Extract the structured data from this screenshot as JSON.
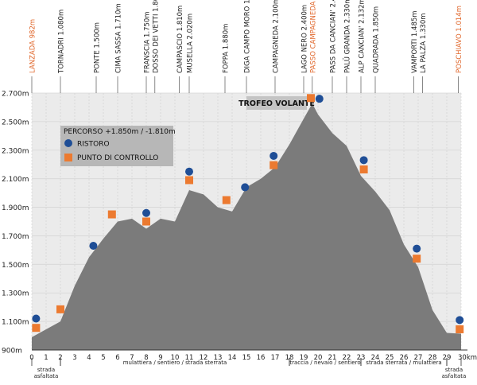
{
  "chart_data": {
    "type": "area",
    "title": "",
    "xlabel": "",
    "ylabel": "",
    "xlim": [
      0,
      30
    ],
    "ylim": [
      900,
      2700
    ],
    "y_ticks": [
      900,
      1100,
      1300,
      1500,
      1700,
      1900,
      2100,
      2300,
      2500,
      2700
    ],
    "y_tick_labels": [
      "900m",
      "1.100m",
      "1.300m",
      "1.500m",
      "1.700m",
      "1.900m",
      "2.100m",
      "2.300m",
      "2.500m",
      "2.700m"
    ],
    "x_ticks": [
      0,
      1,
      2,
      3,
      4,
      5,
      6,
      7,
      8,
      9,
      10,
      11,
      12,
      13,
      14,
      15,
      16,
      17,
      18,
      19,
      20,
      21,
      22,
      23,
      24,
      25,
      26,
      27,
      28,
      29,
      30
    ],
    "x_tick_labels": [
      "0",
      "1",
      "2",
      "3",
      "4",
      "5",
      "6",
      "7",
      "8",
      "9",
      "10",
      "11",
      "12",
      "13",
      "14",
      "15",
      "16",
      "17",
      "18",
      "19",
      "20",
      "21",
      "22",
      "23",
      "24",
      "25",
      "26",
      "27",
      "28",
      "29",
      "30km"
    ],
    "grid": true,
    "profile": {
      "x": [
        0,
        2,
        3,
        4,
        5,
        6,
        7,
        8,
        9,
        10,
        11,
        12,
        13,
        14,
        15,
        16,
        17,
        18,
        19,
        19.6,
        20,
        21,
        22,
        23,
        24,
        25,
        26,
        27,
        28,
        29,
        30
      ],
      "y": [
        990,
        1100,
        1350,
        1550,
        1680,
        1800,
        1820,
        1750,
        1820,
        1800,
        2020,
        1990,
        1900,
        1870,
        2040,
        2100,
        2180,
        2340,
        2520,
        2627,
        2550,
        2420,
        2330,
        2120,
        2010,
        1880,
        1640,
        1480,
        1180,
        1020,
        1014
      ]
    },
    "places": [
      {
        "label": "LANZADA 982m",
        "km": 0,
        "highlight": true
      },
      {
        "label": "TORNADRI 1.080m",
        "km": 2,
        "highlight": false
      },
      {
        "label": "PONTE 1.500m",
        "km": 4.5,
        "highlight": false
      },
      {
        "label": "CIMA SASSA 1.710m",
        "km": 6,
        "highlight": false
      },
      {
        "label": "FRANSCIA 1.750m",
        "km": 8,
        "highlight": false
      },
      {
        "label": "DOSSO DEI VETTI 1.800m",
        "km": 8.6,
        "highlight": false
      },
      {
        "label": "CAMPASCIO 1.810m",
        "km": 10.3,
        "highlight": false
      },
      {
        "label": "MUSELLA 2.020m",
        "km": 11,
        "highlight": false
      },
      {
        "label": "FOPPA 1.880m",
        "km": 13.5,
        "highlight": false
      },
      {
        "label": "DIGA CAMPO MORO 1.970m",
        "km": 15,
        "highlight": false
      },
      {
        "label": "CAMPAGNEDA 2.100m",
        "km": 17,
        "highlight": false
      },
      {
        "label": "LAGO NERO 2.400m",
        "km": 19,
        "highlight": false
      },
      {
        "label": "PASSO CAMPAGNEDA 2.627m",
        "km": 19.6,
        "highlight": true
      },
      {
        "label": "PASS DA CANCIAN' 2.498m",
        "km": 21,
        "highlight": false
      },
      {
        "label": "PALÜ GRANDA 2.330m",
        "km": 22,
        "highlight": false
      },
      {
        "label": "ALP CANCIAN' 2.132m",
        "km": 23,
        "highlight": false
      },
      {
        "label": "QUADRADA 1.850m",
        "km": 24,
        "highlight": false
      },
      {
        "label": "VAMPORTI 1.485m",
        "km": 26.7,
        "highlight": false
      },
      {
        "label": "LA PALZA 1.330m",
        "km": 27.3,
        "highlight": false
      },
      {
        "label": "POSCHIAVO 1.014m",
        "km": 29.8,
        "highlight": true
      }
    ],
    "ristoro": [
      {
        "km": 0.3,
        "elev": 1120
      },
      {
        "km": 4.3,
        "elev": 1630
      },
      {
        "km": 8,
        "elev": 1860
      },
      {
        "km": 11,
        "elev": 2150
      },
      {
        "km": 14.9,
        "elev": 2040
      },
      {
        "km": 16.9,
        "elev": 2260
      },
      {
        "km": 20.1,
        "elev": 2660
      },
      {
        "km": 23.2,
        "elev": 2230
      },
      {
        "km": 26.9,
        "elev": 1610
      },
      {
        "km": 29.9,
        "elev": 1110
      }
    ],
    "controllo": [
      {
        "km": 0.3,
        "elev": 1055
      },
      {
        "km": 2,
        "elev": 1185
      },
      {
        "km": 5.6,
        "elev": 1850
      },
      {
        "km": 8,
        "elev": 1800
      },
      {
        "km": 11,
        "elev": 2090
      },
      {
        "km": 13.6,
        "elev": 1950
      },
      {
        "km": 16.9,
        "elev": 2195
      },
      {
        "km": 19.5,
        "elev": 2665
      },
      {
        "km": 23.2,
        "elev": 2165
      },
      {
        "km": 26.9,
        "elev": 1540
      },
      {
        "km": 29.9,
        "elev": 1045
      }
    ],
    "legend": {
      "percorso": "PERCORSO +1.850m / -1.810m",
      "ristoro_label": "RISTORO",
      "controllo_label": "PUNTO DI CONTROLLO",
      "placement": "top-left"
    },
    "trofeo_label": "TROFEO VOLANTE",
    "segments": [
      {
        "start_km": 0,
        "end_km": 2,
        "label": "strada asfaltata"
      },
      {
        "start_km": 2,
        "end_km": 18,
        "label": "mulattiera / sentiero / strada sterrata"
      },
      {
        "start_km": 18,
        "end_km": 23,
        "label": "traccia / nevaio / sentiero"
      },
      {
        "start_km": 23,
        "end_km": 29,
        "label": "strada sterrata / mulattiera"
      },
      {
        "start_km": 29,
        "end_km": 30,
        "label": "strada asfaltata"
      }
    ],
    "colors": {
      "profile_fill": "#7b7b7b",
      "plot_bg": "#ebebeb",
      "grid": "#ffffff",
      "ristoro": "#1f4e96",
      "controllo": "#ec7a30",
      "highlight_text": "#e0662a",
      "text": "#222222",
      "legend_box": "#b7b7b7"
    }
  }
}
